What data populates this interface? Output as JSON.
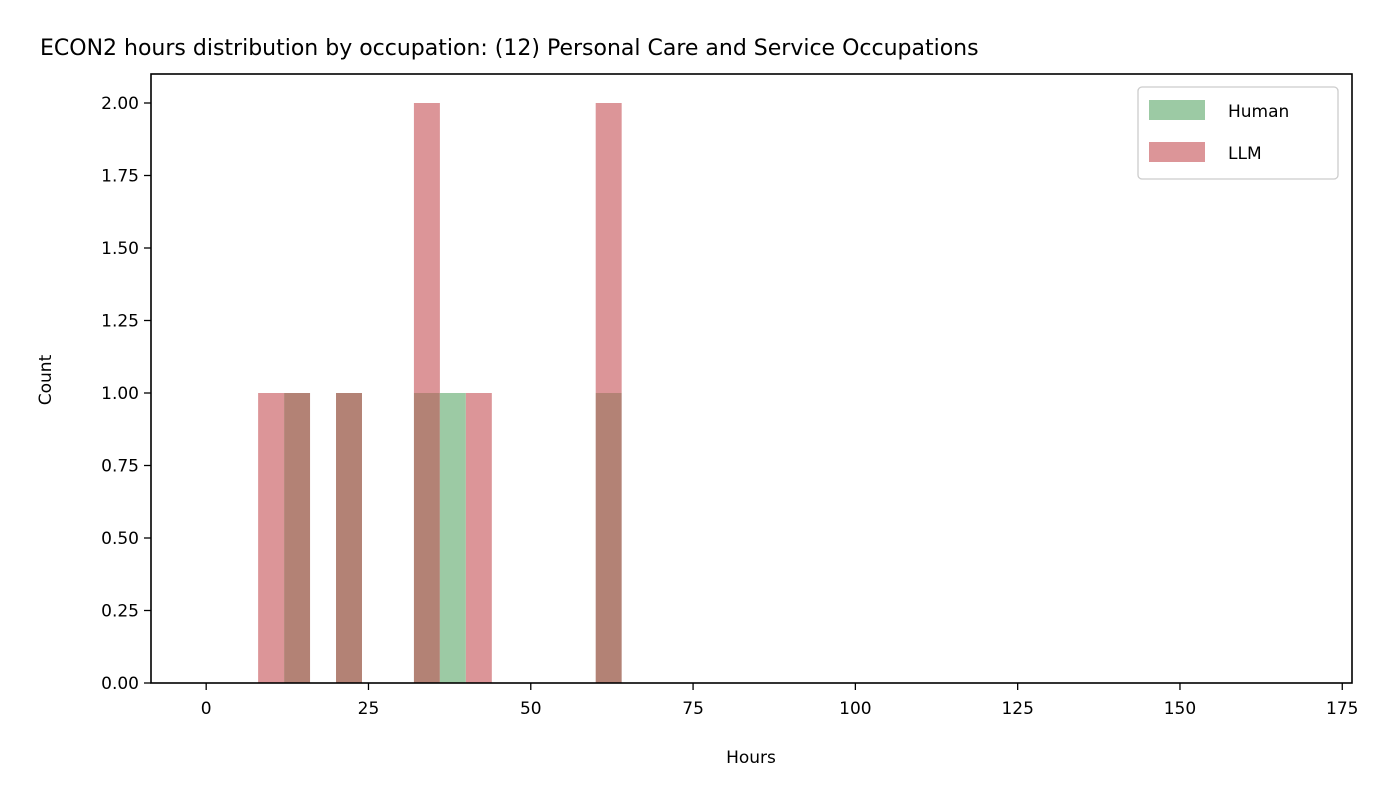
{
  "chart_data": {
    "type": "bar",
    "title": "ECON2 hours distribution by occupation: (12) Personal Care and Service Occupations",
    "xlabel": "Hours",
    "ylabel": "Count",
    "xlim": [
      -8.5,
      176.5
    ],
    "ylim": [
      0,
      2.1
    ],
    "x_ticks": [
      0,
      25,
      50,
      75,
      100,
      125,
      150,
      175
    ],
    "y_ticks": [
      0.0,
      0.25,
      0.5,
      0.75,
      1.0,
      1.25,
      1.5,
      1.75,
      2.0
    ],
    "y_tick_labels": [
      "0.00",
      "0.25",
      "0.50",
      "0.75",
      "1.00",
      "1.25",
      "1.50",
      "1.75",
      "2.00"
    ],
    "bin_width": 4,
    "legend_position": "upper right",
    "grid": false,
    "series": [
      {
        "name": "Human",
        "color": "#9ccaa4",
        "bins": [
          {
            "start": 12,
            "count": 1
          },
          {
            "start": 20,
            "count": 1
          },
          {
            "start": 32,
            "count": 1
          },
          {
            "start": 36,
            "count": 1
          },
          {
            "start": 60,
            "count": 1
          }
        ]
      },
      {
        "name": "LLM",
        "color": "#dc9598",
        "bins": [
          {
            "start": 8,
            "count": 1
          },
          {
            "start": 12,
            "count": 1
          },
          {
            "start": 20,
            "count": 1
          },
          {
            "start": 32,
            "count": 2
          },
          {
            "start": 40,
            "count": 1
          },
          {
            "start": 60,
            "count": 2
          }
        ]
      }
    ],
    "overlap_color": "#b38275"
  }
}
